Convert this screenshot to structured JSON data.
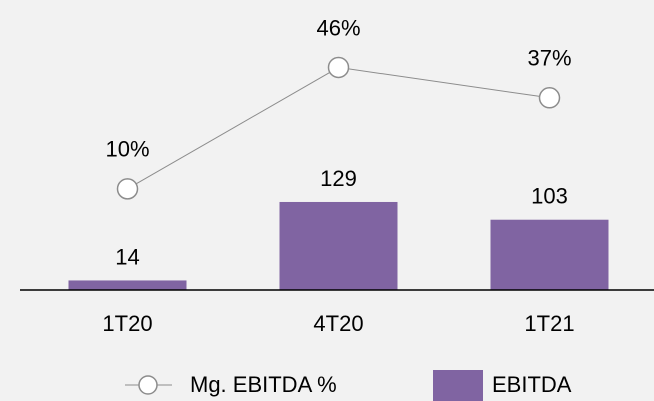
{
  "chart_data": {
    "type": "bar",
    "categories": [
      "1T20",
      "4T20",
      "1T21"
    ],
    "series": [
      {
        "name": "Mg. EBITDA %",
        "type": "line",
        "axis": "y2",
        "color": "#8c8c8c",
        "values": [
          10,
          46,
          37
        ],
        "value_labels": [
          "10%",
          "46%",
          "37%"
        ]
      },
      {
        "name": "EBITDA",
        "type": "bar",
        "color": "#8064a2",
        "values": [
          14,
          129,
          103
        ]
      }
    ],
    "ylim": [
      0,
      425
    ],
    "y2lim": [
      -20,
      66
    ]
  }
}
